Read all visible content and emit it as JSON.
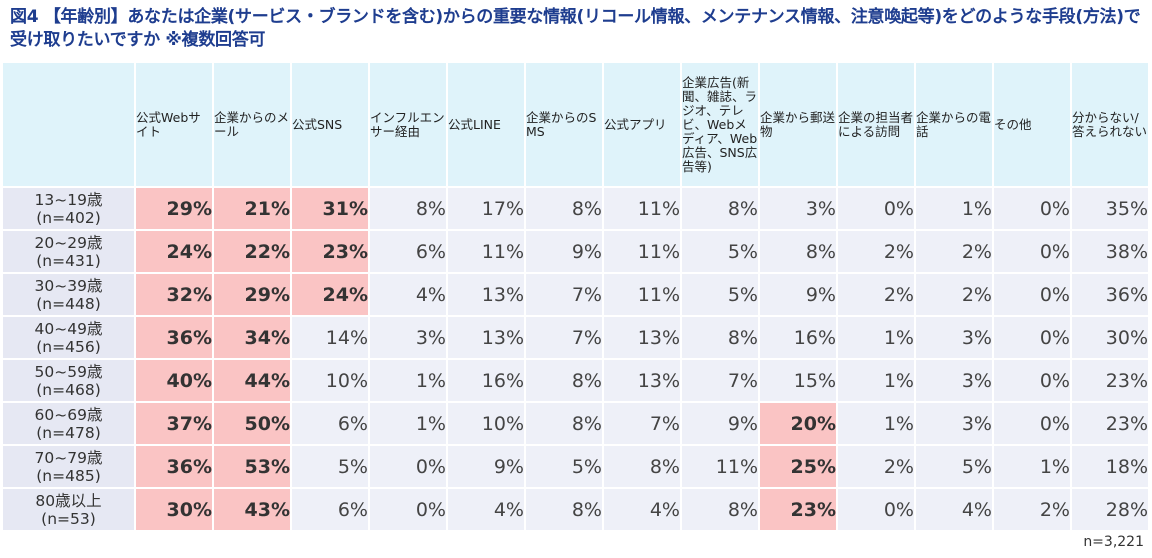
{
  "title": "図4 【年齢別】あなたは企業(サービス・ブランドを含む)からの重要な情報(リコール情報、メンテナンス情報、注意喚起等)をどのような手段(方法)で受け取りたいですか ※複数回答可",
  "sample_note": "n=3,221",
  "chart_data": {
    "type": "table",
    "title": "図4 【年齢別】あなたは企業(サービス・ブランドを含む)からの重要な情報(リコール情報、メンテナンス情報、注意喚起等)をどのような手段(方法)で受け取りたいですか ※複数回答可",
    "columns": [
      "公式Webサイト",
      "企業からのメール",
      "公式SNS",
      "インフルエンサー経由",
      "公式LINE",
      "企業からのSMS",
      "公式アプリ",
      "企業広告(新聞、雑誌、ラジオ、テレビ、Webメディア、Web広告、SNS広告等)",
      "企業から郵送物",
      "企業の担当者による訪問",
      "企業からの電話",
      "その他",
      "分からない/答えられない"
    ],
    "rows": [
      {
        "label1": "13~19歳",
        "label2": "(n=402)",
        "values": [
          "29%",
          "21%",
          "31%",
          "8%",
          "17%",
          "8%",
          "11%",
          "8%",
          "3%",
          "0%",
          "1%",
          "0%",
          "35%"
        ],
        "highlight": [
          true,
          true,
          true,
          false,
          false,
          false,
          false,
          false,
          false,
          false,
          false,
          false,
          false
        ]
      },
      {
        "label1": "20~29歳",
        "label2": "(n=431)",
        "values": [
          "24%",
          "22%",
          "23%",
          "6%",
          "11%",
          "9%",
          "11%",
          "5%",
          "8%",
          "2%",
          "2%",
          "0%",
          "38%"
        ],
        "highlight": [
          true,
          true,
          true,
          false,
          false,
          false,
          false,
          false,
          false,
          false,
          false,
          false,
          false
        ]
      },
      {
        "label1": "30~39歳",
        "label2": "(n=448)",
        "values": [
          "32%",
          "29%",
          "24%",
          "4%",
          "13%",
          "7%",
          "11%",
          "5%",
          "9%",
          "2%",
          "2%",
          "0%",
          "36%"
        ],
        "highlight": [
          true,
          true,
          true,
          false,
          false,
          false,
          false,
          false,
          false,
          false,
          false,
          false,
          false
        ]
      },
      {
        "label1": "40~49歳",
        "label2": "(n=456)",
        "values": [
          "36%",
          "34%",
          "14%",
          "3%",
          "13%",
          "7%",
          "13%",
          "8%",
          "16%",
          "1%",
          "3%",
          "0%",
          "30%"
        ],
        "highlight": [
          true,
          true,
          false,
          false,
          false,
          false,
          false,
          false,
          false,
          false,
          false,
          false,
          false
        ]
      },
      {
        "label1": "50~59歳",
        "label2": "(n=468)",
        "values": [
          "40%",
          "44%",
          "10%",
          "1%",
          "16%",
          "8%",
          "13%",
          "7%",
          "15%",
          "1%",
          "3%",
          "0%",
          "23%"
        ],
        "highlight": [
          true,
          true,
          false,
          false,
          false,
          false,
          false,
          false,
          false,
          false,
          false,
          false,
          false
        ]
      },
      {
        "label1": "60~69歳",
        "label2": "(n=478)",
        "values": [
          "37%",
          "50%",
          "6%",
          "1%",
          "10%",
          "8%",
          "7%",
          "9%",
          "20%",
          "1%",
          "3%",
          "0%",
          "23%"
        ],
        "highlight": [
          true,
          true,
          false,
          false,
          false,
          false,
          false,
          false,
          true,
          false,
          false,
          false,
          false
        ]
      },
      {
        "label1": "70~79歳",
        "label2": "(n=485)",
        "values": [
          "36%",
          "53%",
          "5%",
          "0%",
          "9%",
          "5%",
          "8%",
          "11%",
          "25%",
          "2%",
          "5%",
          "1%",
          "18%"
        ],
        "highlight": [
          true,
          true,
          false,
          false,
          false,
          false,
          false,
          false,
          true,
          false,
          false,
          false,
          false
        ]
      },
      {
        "label1": "80歳以上",
        "label2": "(n=53)",
        "values": [
          "30%",
          "43%",
          "6%",
          "0%",
          "4%",
          "8%",
          "4%",
          "8%",
          "23%",
          "0%",
          "4%",
          "2%",
          "28%"
        ],
        "highlight": [
          true,
          true,
          false,
          false,
          false,
          false,
          false,
          false,
          true,
          false,
          false,
          false,
          false
        ]
      }
    ]
  }
}
